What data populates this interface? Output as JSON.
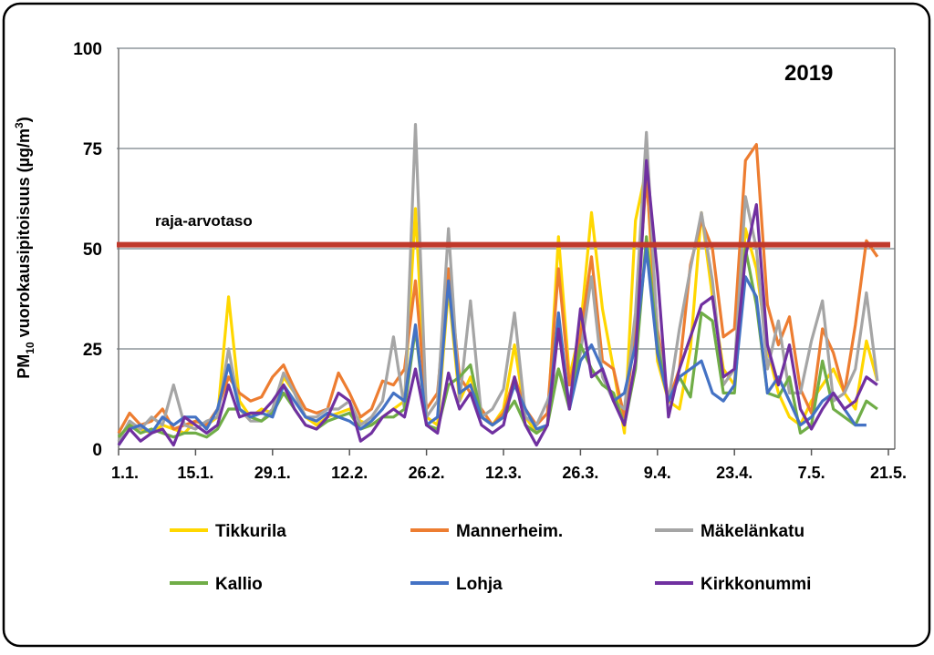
{
  "chart_data": {
    "type": "line",
    "title": "2019",
    "ylabel": {
      "main": "PM",
      "sub": "10",
      "rest": " vuorokausipitoisuus (µg/m",
      "sup": "3",
      "end": ")"
    },
    "xlabel": "",
    "ylim": [
      0,
      100
    ],
    "yticks": [
      0,
      25,
      50,
      75,
      100
    ],
    "xlim_days": [
      0,
      140
    ],
    "x_step_days": 2,
    "xticks": [
      {
        "day": 0,
        "label": "1.1."
      },
      {
        "day": 14,
        "label": "15.1."
      },
      {
        "day": 28,
        "label": "29.1."
      },
      {
        "day": 42,
        "label": "12.2."
      },
      {
        "day": 56,
        "label": "26.2."
      },
      {
        "day": 70,
        "label": "12.3."
      },
      {
        "day": 84,
        "label": "26.3."
      },
      {
        "day": 98,
        "label": "9.4."
      },
      {
        "day": 112,
        "label": "23.4."
      },
      {
        "day": 126,
        "label": "7.5."
      },
      {
        "day": 140,
        "label": "21.5."
      }
    ],
    "grid": true,
    "limit": {
      "label": "raja-arvotaso",
      "value": 51,
      "color": "#C0392B"
    },
    "legend_placement": "bottom",
    "series": [
      {
        "name": "Tikkurila",
        "color": "#FFD700",
        "values": [
          3,
          6,
          5,
          4,
          6,
          5,
          4,
          7,
          6,
          8,
          38,
          12,
          8,
          10,
          9,
          18,
          14,
          8,
          6,
          8,
          9,
          10,
          7,
          6,
          8,
          10,
          12,
          60,
          8,
          6,
          40,
          12,
          18,
          8,
          6,
          10,
          26,
          8,
          4,
          6,
          53,
          18,
          30,
          59,
          35,
          20,
          4,
          57,
          70,
          22,
          12,
          10,
          25,
          59,
          38,
          20,
          16,
          55,
          45,
          25,
          14,
          8,
          6,
          12,
          16,
          20,
          14,
          10,
          27,
          17
        ]
      },
      {
        "name": "Mannerheim.",
        "color": "#ED7D31",
        "values": [
          4,
          9,
          6,
          7,
          10,
          5,
          6,
          7,
          6,
          10,
          18,
          14,
          12,
          13,
          18,
          21,
          15,
          10,
          9,
          10,
          19,
          14,
          8,
          10,
          17,
          16,
          20,
          42,
          10,
          14,
          45,
          18,
          14,
          10,
          6,
          9,
          18,
          10,
          6,
          9,
          45,
          16,
          28,
          48,
          22,
          20,
          8,
          30,
          68,
          30,
          12,
          20,
          46,
          57,
          50,
          28,
          30,
          72,
          76,
          36,
          26,
          33,
          15,
          9,
          30,
          24,
          14,
          31,
          52,
          48
        ]
      },
      {
        "name": "Mäkelänkatu",
        "color": "#A5A5A5",
        "values": [
          2,
          7,
          5,
          8,
          6,
          16,
          6,
          5,
          7,
          8,
          25,
          10,
          7,
          7,
          10,
          19,
          14,
          8,
          8,
          10,
          10,
          12,
          6,
          8,
          12,
          28,
          10,
          81,
          8,
          12,
          55,
          12,
          37,
          8,
          10,
          15,
          34,
          8,
          6,
          12,
          20,
          12,
          24,
          43,
          18,
          12,
          10,
          34,
          79,
          28,
          12,
          30,
          45,
          59,
          42,
          16,
          20,
          63,
          50,
          20,
          32,
          14,
          14,
          27,
          37,
          12,
          14,
          20,
          39,
          17
        ]
      },
      {
        "name": "Kallio",
        "color": "#70AD47",
        "values": [
          3,
          6,
          4,
          5,
          4,
          3,
          4,
          4,
          3,
          5,
          10,
          10,
          8,
          7,
          9,
          14,
          10,
          6,
          5,
          7,
          8,
          9,
          5,
          6,
          8,
          8,
          10,
          30,
          6,
          5,
          16,
          18,
          21,
          8,
          6,
          8,
          12,
          6,
          4,
          6,
          20,
          10,
          26,
          20,
          16,
          14,
          6,
          20,
          53,
          26,
          12,
          18,
          13,
          34,
          32,
          14,
          14,
          50,
          36,
          14,
          13,
          18,
          4,
          6,
          22,
          10,
          8,
          6,
          12,
          10
        ]
      },
      {
        "name": "Lohja",
        "color": "#4472C4",
        "values": [
          1,
          5,
          6,
          4,
          8,
          6,
          8,
          8,
          5,
          10,
          21,
          10,
          8,
          9,
          8,
          16,
          12,
          8,
          7,
          9,
          8,
          7,
          5,
          7,
          10,
          14,
          12,
          31,
          6,
          8,
          42,
          14,
          16,
          8,
          6,
          8,
          16,
          10,
          5,
          6,
          34,
          10,
          22,
          26,
          20,
          12,
          14,
          26,
          50,
          24,
          12,
          18,
          20,
          22,
          14,
          12,
          16,
          43,
          38,
          14,
          18,
          12,
          6,
          8,
          12,
          14,
          10,
          6,
          6,
          null
        ]
      },
      {
        "name": "Kirkkonummi",
        "color": "#7030A0",
        "values": [
          1,
          5,
          2,
          4,
          5,
          1,
          8,
          6,
          4,
          6,
          16,
          8,
          9,
          9,
          12,
          16,
          10,
          6,
          5,
          8,
          14,
          12,
          2,
          4,
          8,
          10,
          8,
          20,
          6,
          4,
          19,
          10,
          14,
          6,
          4,
          6,
          18,
          6,
          1,
          6,
          30,
          10,
          35,
          18,
          20,
          12,
          6,
          22,
          72,
          44,
          8,
          20,
          28,
          36,
          38,
          18,
          20,
          48,
          61,
          26,
          16,
          26,
          10,
          5,
          10,
          14,
          10,
          12,
          18,
          16
        ]
      }
    ]
  }
}
